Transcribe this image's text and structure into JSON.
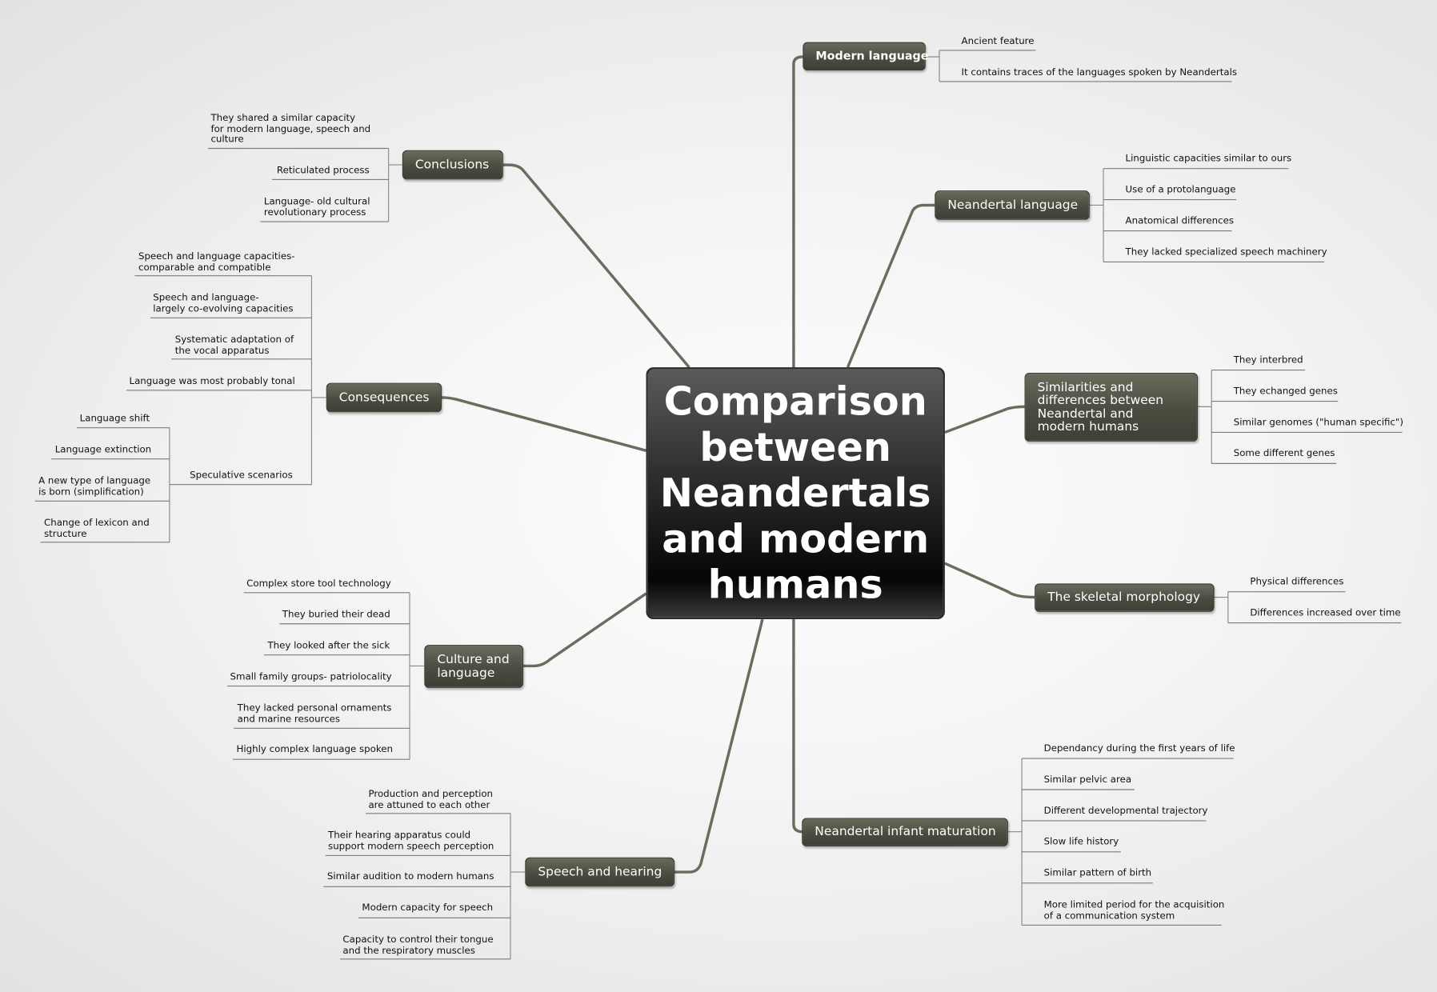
{
  "central": {
    "title": "Comparison between Neandertals and modern humans"
  },
  "topics": {
    "modern_language": {
      "label": "Modern language",
      "items": [
        "Ancient feature",
        "It contains traces of the languages spoken by Neandertals"
      ]
    },
    "neandertal_language": {
      "label": "Neandertal language",
      "items": [
        "Linguistic capacities similar to ours",
        "Use of a protolanguage",
        "Anatomical differences",
        "They lacked specialized speech machinery"
      ]
    },
    "similarities": {
      "label": "Similarities and differences between Neandertal and modern humans",
      "items": [
        "They interbred",
        "They echanged genes",
        "Similar genomes (\"human specific\")",
        "Some different genes"
      ]
    },
    "skeletal": {
      "label": "The skeletal morphology",
      "items": [
        "Physical differences",
        "Differences increased over time"
      ]
    },
    "infant": {
      "label": "Neandertal infant maturation",
      "items": [
        "Dependancy during the first years of life",
        "Similar pelvic area",
        "Different developmental trajectory",
        "Slow life history",
        "Similar pattern of birth",
        "More limited period for the acquisition\nof a communication system"
      ]
    },
    "speech_hearing": {
      "label": "Speech and hearing",
      "items": [
        "Production and perception\nare attuned to each other",
        "Their hearing apparatus could\nsupport modern speech perception",
        "Similar audition to modern humans",
        "Modern capacity for speech",
        "Capacity to control their tongue\nand the respiratory muscles"
      ]
    },
    "culture": {
      "label": "Culture and language",
      "items": [
        "Complex store tool technology",
        "They buried their dead",
        "They looked after the sick",
        "Small family groups- patriolocality",
        "They lacked personal ornaments\nand marine resources",
        "Highly complex language spoken"
      ]
    },
    "consequences": {
      "label": "Consequences",
      "items": [
        "Speech and language capacities-\ncomparable and compatible",
        "Speech and language-\nlargely co-evolving capacities",
        "Systematic adaptation of\nthe vocal apparatus",
        "Language was most probably tonal",
        "Speculative scenarios"
      ],
      "speculative": [
        "Language shift",
        "Language extinction",
        "A new type of language\nis born (simplification)",
        "Change of lexicon and\nstructure"
      ]
    },
    "conclusions": {
      "label": "Conclusions",
      "items": [
        "They shared a similar capacity\nfor modern language, speech and\nculture",
        "Reticulated process",
        "Language- old cultural\nrevolutionary process"
      ]
    }
  }
}
